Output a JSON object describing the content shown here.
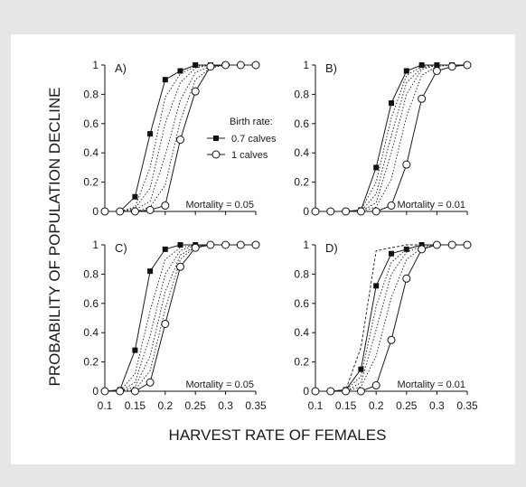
{
  "figure": {
    "ylabel": "PROBABILITY OF POPULATION DECLINE",
    "xlabel": "HARVEST RATE OF FEMALES",
    "legend": {
      "title": "Birth rate:",
      "entries": [
        {
          "label": "0.7 calves",
          "marker": "filled-square"
        },
        {
          "label": "1 calves",
          "marker": "open-circle"
        }
      ]
    }
  },
  "chart_data": [
    {
      "panel": "A)",
      "type": "line",
      "annotation": "Mortality =  0.05",
      "xlim": [
        0.1,
        0.35
      ],
      "ylim": [
        0,
        1
      ],
      "xticks": [
        "0.1",
        "0.15",
        "0.2",
        "0.25",
        "0.3",
        "0.35"
      ],
      "yticks": [
        "0",
        "0.2",
        "0.4",
        "0.6",
        "0.8",
        "1"
      ],
      "series": [
        {
          "name": "0.7 calves",
          "marker": "square",
          "style": "solid",
          "x": [
            0.1,
            0.125,
            0.15,
            0.175,
            0.2,
            0.225,
            0.25,
            0.275,
            0.3,
            0.325,
            0.35
          ],
          "y": [
            0,
            0,
            0.1,
            0.53,
            0.9,
            0.96,
            1,
            1,
            1,
            1,
            1
          ]
        },
        {
          "name": "",
          "marker": "none",
          "style": "dotted",
          "x": [
            0.1,
            0.125,
            0.15,
            0.175,
            0.2,
            0.225,
            0.25,
            0.275,
            0.3,
            0.325,
            0.35
          ],
          "y": [
            0,
            0,
            0.03,
            0.3,
            0.78,
            0.94,
            0.99,
            1,
            1,
            1,
            1
          ]
        },
        {
          "name": "",
          "marker": "none",
          "style": "dotted",
          "x": [
            0.1,
            0.125,
            0.15,
            0.175,
            0.2,
            0.225,
            0.25,
            0.275,
            0.3,
            0.325,
            0.35
          ],
          "y": [
            0,
            0,
            0.02,
            0.16,
            0.6,
            0.88,
            0.98,
            1,
            1,
            1,
            1
          ]
        },
        {
          "name": "",
          "marker": "none",
          "style": "dotted",
          "x": [
            0.1,
            0.125,
            0.15,
            0.175,
            0.2,
            0.225,
            0.25,
            0.275,
            0.3,
            0.325,
            0.35
          ],
          "y": [
            0,
            0,
            0.01,
            0.07,
            0.38,
            0.76,
            0.95,
            0.99,
            1,
            1,
            1
          ]
        },
        {
          "name": "",
          "marker": "none",
          "style": "dotted",
          "x": [
            0.1,
            0.125,
            0.15,
            0.175,
            0.2,
            0.225,
            0.25,
            0.275,
            0.3,
            0.325,
            0.35
          ],
          "y": [
            0,
            0,
            0,
            0.03,
            0.18,
            0.62,
            0.9,
            0.98,
            1,
            1,
            1
          ]
        },
        {
          "name": "1 calves",
          "marker": "circle",
          "style": "solid",
          "x": [
            0.1,
            0.125,
            0.15,
            0.175,
            0.2,
            0.225,
            0.25,
            0.275,
            0.3,
            0.325,
            0.35
          ],
          "y": [
            0,
            0,
            0,
            0.01,
            0.04,
            0.49,
            0.82,
            0.99,
            1,
            1,
            1
          ]
        }
      ]
    },
    {
      "panel": "B)",
      "type": "line",
      "annotation": "Mortality = 0.01",
      "xlim": [
        0.1,
        0.35
      ],
      "ylim": [
        0,
        1
      ],
      "xticks": [
        "0.1",
        "0.15",
        "0.2",
        "0.25",
        "0.3",
        "0.35"
      ],
      "yticks": [
        "0",
        "0.2",
        "0.4",
        "0.6",
        "0.8",
        "1"
      ],
      "series": [
        {
          "name": "0.7 calves",
          "marker": "square",
          "style": "solid",
          "x": [
            0.1,
            0.125,
            0.15,
            0.175,
            0.2,
            0.225,
            0.25,
            0.275,
            0.3,
            0.325,
            0.35
          ],
          "y": [
            0,
            0,
            0,
            0.01,
            0.3,
            0.74,
            0.96,
            1,
            1,
            1,
            1
          ]
        },
        {
          "name": "",
          "marker": "none",
          "style": "dotted",
          "x": [
            0.1,
            0.125,
            0.15,
            0.175,
            0.2,
            0.225,
            0.25,
            0.275,
            0.3,
            0.325,
            0.35
          ],
          "y": [
            0,
            0,
            0,
            0.01,
            0.2,
            0.64,
            0.93,
            0.99,
            1,
            1,
            1
          ]
        },
        {
          "name": "",
          "marker": "none",
          "style": "dotted",
          "x": [
            0.1,
            0.125,
            0.15,
            0.175,
            0.2,
            0.225,
            0.25,
            0.275,
            0.3,
            0.325,
            0.35
          ],
          "y": [
            0,
            0,
            0,
            0,
            0.12,
            0.52,
            0.88,
            0.98,
            1,
            1,
            1
          ]
        },
        {
          "name": "",
          "marker": "none",
          "style": "dotted",
          "x": [
            0.1,
            0.125,
            0.15,
            0.175,
            0.2,
            0.225,
            0.25,
            0.275,
            0.3,
            0.325,
            0.35
          ],
          "y": [
            0,
            0,
            0,
            0,
            0.06,
            0.4,
            0.8,
            0.97,
            1,
            1,
            1
          ]
        },
        {
          "name": "",
          "marker": "none",
          "style": "dotted",
          "x": [
            0.1,
            0.125,
            0.15,
            0.175,
            0.2,
            0.225,
            0.25,
            0.275,
            0.3,
            0.325,
            0.35
          ],
          "y": [
            0,
            0,
            0,
            0,
            0.03,
            0.22,
            0.65,
            0.93,
            0.99,
            1,
            1
          ]
        },
        {
          "name": "1 calves",
          "marker": "circle",
          "style": "solid",
          "x": [
            0.1,
            0.125,
            0.15,
            0.175,
            0.2,
            0.225,
            0.25,
            0.275,
            0.3,
            0.325,
            0.35
          ],
          "y": [
            0,
            0,
            0,
            0,
            0,
            0.04,
            0.32,
            0.77,
            0.96,
            0.99,
            1
          ]
        }
      ]
    },
    {
      "panel": "C)",
      "type": "line",
      "annotation": "Mortality = 0.05",
      "xlim": [
        0.1,
        0.35
      ],
      "ylim": [
        0,
        1
      ],
      "xticks": [
        "0.1",
        "0.15",
        "0.2",
        "0.25",
        "0.3",
        "0.35"
      ],
      "yticks": [
        "0",
        "0.2",
        "0.4",
        "0.6",
        "0.8",
        "1"
      ],
      "series": [
        {
          "name": "0.7 calves",
          "marker": "square",
          "style": "solid",
          "x": [
            0.1,
            0.125,
            0.15,
            0.175,
            0.2,
            0.225,
            0.25,
            0.275,
            0.3,
            0.325,
            0.35
          ],
          "y": [
            0,
            0.01,
            0.28,
            0.82,
            0.97,
            1,
            1,
            1,
            1,
            1,
            1
          ]
        },
        {
          "name": "",
          "marker": "none",
          "style": "dotted",
          "x": [
            0.1,
            0.125,
            0.15,
            0.175,
            0.2,
            0.225,
            0.25,
            0.275,
            0.3,
            0.325,
            0.35
          ],
          "y": [
            0,
            0,
            0.12,
            0.55,
            0.9,
            0.98,
            1,
            1,
            1,
            1,
            1
          ]
        },
        {
          "name": "",
          "marker": "none",
          "style": "dotted",
          "x": [
            0.1,
            0.125,
            0.15,
            0.175,
            0.2,
            0.225,
            0.25,
            0.275,
            0.3,
            0.325,
            0.35
          ],
          "y": [
            0,
            0,
            0.06,
            0.38,
            0.8,
            0.96,
            1,
            1,
            1,
            1,
            1
          ]
        },
        {
          "name": "",
          "marker": "none",
          "style": "dotted",
          "x": [
            0.1,
            0.125,
            0.15,
            0.175,
            0.2,
            0.225,
            0.25,
            0.275,
            0.3,
            0.325,
            0.35
          ],
          "y": [
            0,
            0,
            0.03,
            0.24,
            0.68,
            0.93,
            0.99,
            1,
            1,
            1,
            1
          ]
        },
        {
          "name": "",
          "marker": "none",
          "style": "dotted",
          "x": [
            0.1,
            0.125,
            0.15,
            0.175,
            0.2,
            0.225,
            0.25,
            0.275,
            0.3,
            0.325,
            0.35
          ],
          "y": [
            0,
            0,
            0.01,
            0.14,
            0.56,
            0.9,
            0.99,
            1,
            1,
            1,
            1
          ]
        },
        {
          "name": "1 calves",
          "marker": "circle",
          "style": "solid",
          "x": [
            0.1,
            0.125,
            0.15,
            0.175,
            0.2,
            0.225,
            0.25,
            0.275,
            0.3,
            0.325,
            0.35
          ],
          "y": [
            0,
            0,
            0,
            0.06,
            0.46,
            0.85,
            0.98,
            1,
            1,
            1,
            1
          ]
        }
      ]
    },
    {
      "panel": "D)",
      "type": "line",
      "annotation": "Mortality = 0.01",
      "xlim": [
        0.1,
        0.35
      ],
      "ylim": [
        0,
        1
      ],
      "xticks": [
        "0.1",
        "0.15",
        "0.2",
        "0.25",
        "0.3",
        "0.35"
      ],
      "yticks": [
        "0",
        "0.2",
        "0.4",
        "0.6",
        "0.8",
        "1"
      ],
      "series": [
        {
          "name": "0.7 calves",
          "marker": "square",
          "style": "solid",
          "x": [
            0.1,
            0.125,
            0.15,
            0.175,
            0.2,
            0.225,
            0.25,
            0.275,
            0.3,
            0.325,
            0.35
          ],
          "y": [
            0,
            0,
            0.01,
            0.15,
            0.72,
            0.94,
            0.97,
            1,
            1,
            1,
            1
          ]
        },
        {
          "name": "",
          "marker": "none",
          "style": "dashed",
          "x": [
            0.1,
            0.125,
            0.15,
            0.175,
            0.2,
            0.225,
            0.25,
            0.275,
            0.3,
            0.325,
            0.35
          ],
          "y": [
            0,
            0,
            0.01,
            0.3,
            0.96,
            0.98,
            1,
            1,
            1,
            1,
            1
          ]
        },
        {
          "name": "",
          "marker": "none",
          "style": "dotted",
          "x": [
            0.1,
            0.125,
            0.15,
            0.175,
            0.2,
            0.225,
            0.25,
            0.275,
            0.3,
            0.325,
            0.35
          ],
          "y": [
            0,
            0,
            0.01,
            0.1,
            0.58,
            0.88,
            0.97,
            1,
            1,
            1,
            1
          ]
        },
        {
          "name": "",
          "marker": "none",
          "style": "dotted",
          "x": [
            0.1,
            0.125,
            0.15,
            0.175,
            0.2,
            0.225,
            0.25,
            0.275,
            0.3,
            0.325,
            0.35
          ],
          "y": [
            0,
            0,
            0,
            0.06,
            0.42,
            0.8,
            0.95,
            0.99,
            1,
            1,
            1
          ]
        },
        {
          "name": "",
          "marker": "none",
          "style": "dotted",
          "x": [
            0.1,
            0.125,
            0.15,
            0.175,
            0.2,
            0.225,
            0.25,
            0.275,
            0.3,
            0.325,
            0.35
          ],
          "y": [
            0,
            0,
            0,
            0.03,
            0.24,
            0.64,
            0.9,
            0.98,
            1,
            1,
            1
          ]
        },
        {
          "name": "1 calves",
          "marker": "circle",
          "style": "solid",
          "x": [
            0.1,
            0.125,
            0.15,
            0.175,
            0.2,
            0.225,
            0.25,
            0.275,
            0.3,
            0.325,
            0.35
          ],
          "y": [
            0,
            0,
            0,
            0,
            0.04,
            0.35,
            0.77,
            0.97,
            1,
            1,
            1
          ]
        }
      ]
    }
  ]
}
